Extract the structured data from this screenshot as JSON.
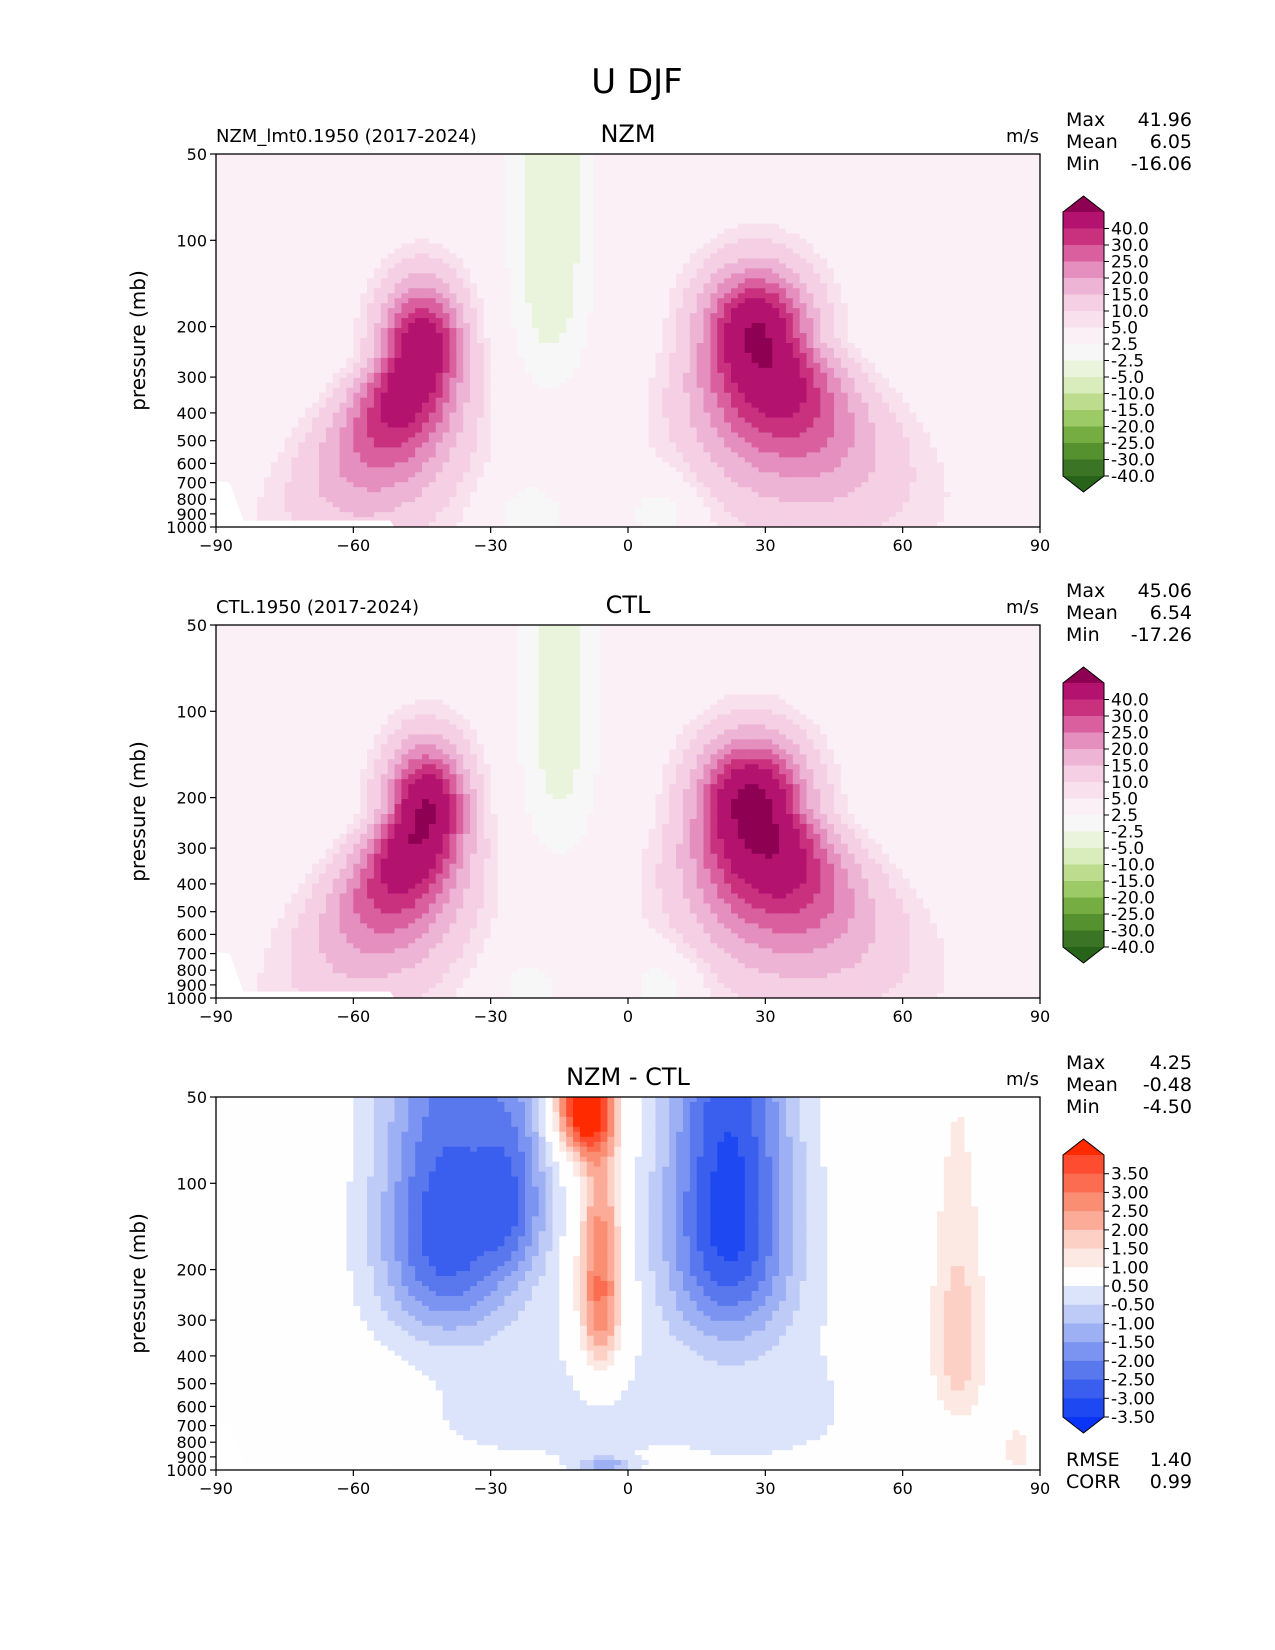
{
  "title": "U DJF",
  "common": {
    "ylabel": "pressure (mb)",
    "units": "m/s",
    "xticks": [
      "−90",
      "−60",
      "−30",
      "0",
      "30",
      "60",
      "90"
    ],
    "yticks": [
      "50",
      "100",
      "200",
      "300",
      "400",
      "500",
      "600",
      "700",
      "800",
      "900",
      "1000"
    ],
    "stat_labels": {
      "max": "Max",
      "mean": "Mean",
      "min": "Min",
      "rmse": "RMSE",
      "corr": "CORR"
    }
  },
  "panels": [
    {
      "name": "NZM",
      "case": "NZM_lmt0.1950 (2017-2024)",
      "stats": {
        "max": "41.96",
        "mean": "6.05",
        "min": "-16.06"
      },
      "colorbar_labels": [
        "40.0",
        "30.0",
        "25.0",
        "20.0",
        "15.0",
        "10.0",
        "5.0",
        "2.5",
        "-2.5",
        "-5.0",
        "-10.0",
        "-15.0",
        "-20.0",
        "-25.0",
        "-30.0",
        "-40.0"
      ],
      "colorbar_colors": [
        "#8e0152",
        "#b3136e",
        "#c9317f",
        "#d95f9f",
        "#e58fbf",
        "#eeb4d5",
        "#f5cfe3",
        "#f8e0ec",
        "#faf0f5",
        "#f7f7f7",
        "#eaf4dc",
        "#d8ecbc",
        "#bddc8e",
        "#9bca66",
        "#76ad43",
        "#55912e",
        "#3a7424",
        "#276419"
      ]
    },
    {
      "name": "CTL",
      "case": "CTL.1950 (2017-2024)",
      "stats": {
        "max": "45.06",
        "mean": "6.54",
        "min": "-17.26"
      },
      "colorbar_labels": [
        "40.0",
        "30.0",
        "25.0",
        "20.0",
        "15.0",
        "10.0",
        "5.0",
        "2.5",
        "-2.5",
        "-5.0",
        "-10.0",
        "-15.0",
        "-20.0",
        "-25.0",
        "-30.0",
        "-40.0"
      ],
      "colorbar_colors": [
        "#8e0152",
        "#b3136e",
        "#c9317f",
        "#d95f9f",
        "#e58fbf",
        "#eeb4d5",
        "#f5cfe3",
        "#f8e0ec",
        "#faf0f5",
        "#f7f7f7",
        "#eaf4dc",
        "#d8ecbc",
        "#bddc8e",
        "#9bca66",
        "#76ad43",
        "#55912e",
        "#3a7424",
        "#276419"
      ]
    },
    {
      "name": "NZM - CTL",
      "case": "",
      "stats": {
        "max": "4.25",
        "mean": "-0.48",
        "min": "-4.50",
        "rmse": "1.40",
        "corr": "0.99"
      },
      "colorbar_labels": [
        "3.50",
        "3.00",
        "2.50",
        "2.00",
        "1.50",
        "1.00",
        "0.50",
        "-0.50",
        "-1.00",
        "-1.50",
        "-2.00",
        "-2.50",
        "-3.00",
        "-3.50"
      ],
      "colorbar_colors": [
        "#ff2a00",
        "#fd4c2f",
        "#fb6c50",
        "#f98e73",
        "#fbab98",
        "#fdd0c5",
        "#fde9e4",
        "#fefefe",
        "#dce4fb",
        "#bfcbf7",
        "#9eb0f4",
        "#7c94f1",
        "#5a78ee",
        "#3a5eee",
        "#1e48f2",
        "#0a35f6"
      ]
    }
  ],
  "chart_data": [
    {
      "type": "filled-contour",
      "title": "NZM",
      "subtitle": "NZM_lmt0.1950 (2017-2024)",
      "xlabel": "",
      "ylabel": "pressure (mb)",
      "units": "m/s",
      "xlim": [
        -90,
        90
      ],
      "ylim": [
        1000,
        50
      ],
      "levels": [
        -40,
        -30,
        -25,
        -20,
        -15,
        -10,
        -5,
        -2.5,
        2.5,
        5,
        10,
        15,
        20,
        25,
        30,
        40
      ],
      "features": [
        {
          "kind": "jet",
          "lat": -45,
          "p": 250,
          "max": 40,
          "w": 9,
          "pd": 200,
          "trail": 22,
          "pz": 500
        },
        {
          "kind": "jet",
          "lat": 28,
          "p": 220,
          "max": 41.96,
          "w": 12,
          "pd": 230,
          "trail": 18,
          "pz": 420
        },
        {
          "kind": "easterly",
          "lat": -17,
          "p": 60,
          "min": -8
        },
        {
          "kind": "easterly",
          "lat": 8,
          "p": 880,
          "min": -6
        },
        {
          "kind": "easterly",
          "lat": -22,
          "p": 920,
          "min": -5
        }
      ]
    },
    {
      "type": "filled-contour",
      "title": "CTL",
      "subtitle": "CTL.1950 (2017-2024)",
      "xlabel": "",
      "ylabel": "pressure (mb)",
      "units": "m/s",
      "xlim": [
        -90,
        90
      ],
      "ylim": [
        1000,
        50
      ],
      "levels": [
        -40,
        -30,
        -25,
        -20,
        -15,
        -10,
        -5,
        -2.5,
        2.5,
        5,
        10,
        15,
        20,
        25,
        30,
        40
      ],
      "features": [
        {
          "kind": "jet",
          "lat": -44,
          "p": 230,
          "max": 42,
          "w": 9,
          "pd": 200,
          "trail": 22,
          "pz": 500
        },
        {
          "kind": "jet",
          "lat": 27,
          "p": 220,
          "max": 45.06,
          "w": 12,
          "pd": 230,
          "trail": 18,
          "pz": 420
        },
        {
          "kind": "easterly",
          "lat": -15,
          "p": 60,
          "min": -7
        },
        {
          "kind": "easterly",
          "lat": 8,
          "p": 880,
          "min": -6
        },
        {
          "kind": "easterly",
          "lat": -22,
          "p": 920,
          "min": -4
        }
      ]
    },
    {
      "type": "filled-contour",
      "title": "NZM - CTL",
      "xlabel": "",
      "ylabel": "pressure (mb)",
      "units": "m/s",
      "xlim": [
        -90,
        90
      ],
      "ylim": [
        1000,
        50
      ],
      "levels": [
        -3.5,
        -3.0,
        -2.5,
        -2.0,
        -1.5,
        -1.0,
        -0.5,
        0.5,
        1.0,
        1.5,
        2.0,
        2.5,
        3.0,
        3.5
      ],
      "stats": {
        "max": 4.25,
        "mean": -0.48,
        "min": -4.5,
        "rmse": 1.4,
        "corr": 0.99
      },
      "features": [
        {
          "kind": "anomaly",
          "lat": -40,
          "p": 140,
          "amp": -3.2,
          "w": 15,
          "pd": 180
        },
        {
          "kind": "anomaly",
          "lat": -25,
          "p": 110,
          "amp": -1.8,
          "w": 8,
          "pd": 90
        },
        {
          "kind": "anomaly",
          "lat": 22,
          "p": 120,
          "amp": -3.6,
          "w": 14,
          "pd": 200
        },
        {
          "kind": "anomaly",
          "lat": -6,
          "p": 240,
          "amp": 3.0,
          "w": 5,
          "pd": 220
        },
        {
          "kind": "anomaly",
          "lat": -10,
          "p": 52,
          "amp": 4.2,
          "w": 6,
          "pd": 25
        },
        {
          "kind": "anomaly",
          "lat": 72,
          "p": 360,
          "amp": 1.4,
          "w": 6,
          "pd": 300
        },
        {
          "kind": "anomaly",
          "lat": 85,
          "p": 850,
          "amp": 0.9,
          "w": 3,
          "pd": 150
        },
        {
          "kind": "anomaly",
          "lat": 10,
          "p": 880,
          "amp": 0.7,
          "w": 3,
          "pd": 40
        },
        {
          "kind": "anomaly",
          "lat": -5,
          "p": 960,
          "amp": -1.6,
          "w": 6,
          "pd": 60
        },
        {
          "kind": "anomaly",
          "lat": -20,
          "p": 600,
          "amp": -0.7,
          "w": 35,
          "pd": 450
        },
        {
          "kind": "anomaly",
          "lat": 30,
          "p": 600,
          "amp": -0.7,
          "w": 25,
          "pd": 400
        }
      ]
    }
  ]
}
